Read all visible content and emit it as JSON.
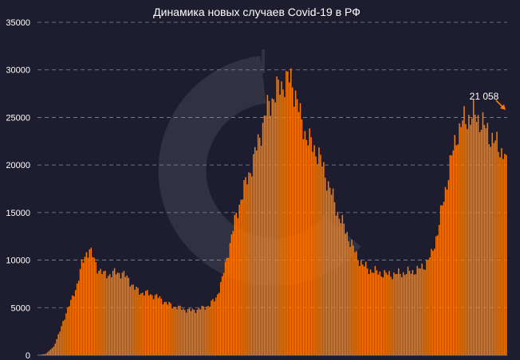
{
  "chart_data": {
    "type": "bar",
    "title": "Динамика новых случаев Covid-19 в РФ",
    "xlabel": "",
    "ylabel": "",
    "ylim": [
      0,
      35000
    ],
    "y_ticks": [
      "0",
      "5000",
      "10000",
      "15000",
      "20000",
      "25000",
      "30000",
      "35000"
    ],
    "grid": true,
    "bar_color": "#ff7a00",
    "background_color": "#1e1d30",
    "gridline_color": "#8a8a9a",
    "annotation": {
      "label": "21 058",
      "arrow": true
    },
    "profile_keyframes": [
      [
        0,
        0
      ],
      [
        5,
        150
      ],
      [
        10,
        900
      ],
      [
        14,
        2500
      ],
      [
        18,
        4500
      ],
      [
        22,
        6000
      ],
      [
        25,
        7500
      ],
      [
        28,
        9500
      ],
      [
        31,
        10800
      ],
      [
        33,
        11100
      ],
      [
        35,
        10400
      ],
      [
        38,
        9200
      ],
      [
        42,
        8500
      ],
      [
        46,
        8500
      ],
      [
        50,
        8700
      ],
      [
        54,
        8600
      ],
      [
        58,
        8000
      ],
      [
        62,
        7000
      ],
      [
        66,
        6600
      ],
      [
        70,
        6500
      ],
      [
        74,
        6300
      ],
      [
        78,
        6000
      ],
      [
        82,
        5500
      ],
      [
        86,
        5200
      ],
      [
        90,
        5000
      ],
      [
        94,
        4800
      ],
      [
        98,
        4700
      ],
      [
        102,
        4800
      ],
      [
        106,
        5000
      ],
      [
        110,
        5300
      ],
      [
        114,
        6000
      ],
      [
        118,
        8000
      ],
      [
        122,
        11000
      ],
      [
        126,
        14000
      ],
      [
        130,
        16500
      ],
      [
        134,
        18500
      ],
      [
        138,
        20500
      ],
      [
        142,
        23000
      ],
      [
        146,
        25500
      ],
      [
        150,
        27000
      ],
      [
        154,
        28000
      ],
      [
        158,
        28800
      ],
      [
        162,
        29000
      ],
      [
        165,
        27500
      ],
      [
        168,
        25000
      ],
      [
        172,
        23000
      ],
      [
        176,
        22000
      ],
      [
        180,
        21000
      ],
      [
        184,
        19000
      ],
      [
        188,
        17000
      ],
      [
        192,
        15000
      ],
      [
        196,
        13500
      ],
      [
        200,
        12000
      ],
      [
        204,
        10500
      ],
      [
        208,
        9500
      ],
      [
        212,
        9000
      ],
      [
        216,
        8800
      ],
      [
        220,
        8600
      ],
      [
        224,
        8500
      ],
      [
        228,
        8500
      ],
      [
        232,
        8600
      ],
      [
        236,
        8700
      ],
      [
        240,
        8800
      ],
      [
        244,
        9000
      ],
      [
        248,
        9500
      ],
      [
        252,
        10500
      ],
      [
        256,
        13000
      ],
      [
        260,
        16500
      ],
      [
        264,
        20000
      ],
      [
        268,
        23000
      ],
      [
        272,
        24500
      ],
      [
        276,
        25000
      ],
      [
        280,
        25200
      ],
      [
        284,
        24500
      ],
      [
        288,
        23500
      ],
      [
        292,
        22500
      ],
      [
        296,
        21700
      ],
      [
        300,
        21058
      ]
    ]
  }
}
